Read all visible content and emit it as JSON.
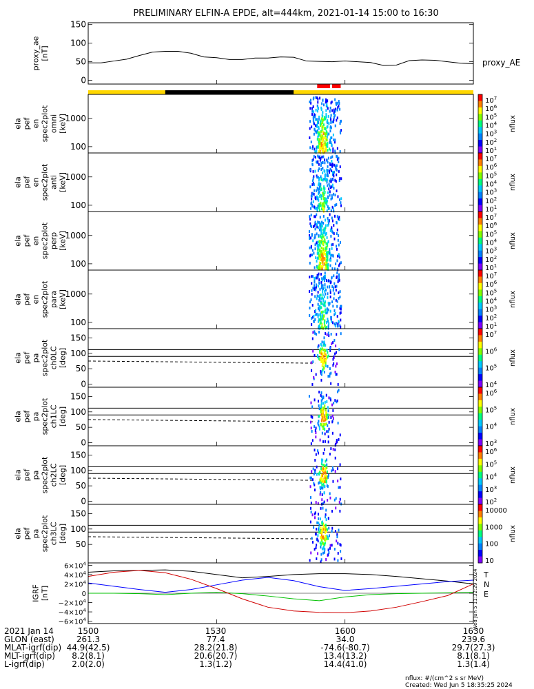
{
  "title": "PRELIMINARY ELFIN-A EPDE, alt=444km, 2021-01-14 15:00 to 16:30",
  "colors": {
    "frame": "#000000",
    "sunlit_bar": "#ffd700",
    "shadow_bar": "#000000",
    "science_bar": "#ff0000",
    "igrf_black": "#000000",
    "igrf_blue": "#0000ff",
    "igrf_green": "#00c000",
    "igrf_red": "#d00000"
  },
  "chart_data": [
    {
      "type": "line",
      "panel": "proxy_ae",
      "ylabel": "proxy_ae [nT]",
      "legend": "proxy_AE",
      "ylim": [
        -10,
        155
      ],
      "yticks": [
        "150",
        "100",
        "50",
        "0"
      ],
      "ytick_values": [
        150,
        100,
        50,
        0
      ],
      "x_minutes_since_1500": [
        0,
        3,
        6,
        9,
        12,
        15,
        18,
        21,
        24,
        27,
        30,
        33,
        36,
        39,
        42,
        45,
        48,
        51,
        54,
        57,
        60,
        63,
        66,
        69,
        72,
        75,
        78,
        81,
        84,
        87,
        90
      ],
      "values": [
        47,
        47,
        52,
        57,
        67,
        76,
        78,
        78,
        73,
        63,
        61,
        56,
        56,
        60,
        60,
        63,
        62,
        52,
        51,
        50,
        52,
        50,
        48,
        40,
        41,
        53,
        55,
        54,
        50,
        46,
        45
      ]
    },
    {
      "type": "heatmap",
      "panel": "omni",
      "ylabel": "ela pef en spec2plot omni [keV]",
      "yscale": "log",
      "yticks": [
        "1000",
        "100"
      ],
      "ytick_values": [
        1000,
        100
      ],
      "ylim": [
        60,
        7000
      ],
      "colorbar_label": "nflux",
      "colorbar_ticks": [
        "10^7",
        "10^6",
        "10^5",
        "10^4",
        "10^3",
        "10^2",
        "10^1"
      ]
    },
    {
      "type": "heatmap",
      "panel": "anti",
      "ylabel": "ela pef en spec2plot anti [keV]",
      "yscale": "log",
      "yticks": [
        "1000",
        "100"
      ],
      "ytick_values": [
        1000,
        100
      ],
      "ylim": [
        60,
        7000
      ],
      "colorbar_label": "nflux",
      "colorbar_ticks": [
        "10^7",
        "10^6",
        "10^5",
        "10^4",
        "10^3",
        "10^2",
        "10^1"
      ]
    },
    {
      "type": "heatmap",
      "panel": "perp",
      "ylabel": "ela pef en spec2plot perp [keV]",
      "yscale": "log",
      "yticks": [
        "1000",
        "100"
      ],
      "ytick_values": [
        1000,
        100
      ],
      "ylim": [
        60,
        7000
      ],
      "colorbar_label": "nflux",
      "colorbar_ticks": [
        "10^7",
        "10^6",
        "10^5",
        "10^4",
        "10^3",
        "10^2",
        "10^1"
      ]
    },
    {
      "type": "heatmap",
      "panel": "para",
      "ylabel": "ela pef en spec2plot para [keV]",
      "yscale": "log",
      "yticks": [
        "1000",
        "100"
      ],
      "ytick_values": [
        1000,
        100
      ],
      "ylim": [
        60,
        7000
      ],
      "colorbar_label": "nflux",
      "colorbar_ticks": [
        "10^7",
        "10^6",
        "10^5",
        "10^4",
        "10^3",
        "10^2",
        "10^1"
      ]
    },
    {
      "type": "heatmap",
      "panel": "ch0LC",
      "ylabel": "ela pef pa spec2plot ch0LC [deg]",
      "yticks": [
        "150",
        "100",
        "50",
        "0"
      ],
      "ytick_values": [
        150,
        100,
        50,
        0
      ],
      "ylim": [
        -10,
        180
      ],
      "colorbar_label": "nflux",
      "colorbar_ticks": [
        "10^7",
        "10^6",
        "10^5",
        "10^4"
      ]
    },
    {
      "type": "heatmap",
      "panel": "ch1LC",
      "ylabel": "ela pef pa spec2plot ch1LC [deg]",
      "yticks": [
        "150",
        "100",
        "50",
        "0"
      ],
      "ytick_values": [
        150,
        100,
        50,
        0
      ],
      "ylim": [
        -10,
        180
      ],
      "colorbar_label": "nflux",
      "colorbar_ticks": [
        "10^6",
        "10^5",
        "10^4",
        "10^3"
      ]
    },
    {
      "type": "heatmap",
      "panel": "ch2LC",
      "ylabel": "ela pef pa spec2plot ch2LC [deg]",
      "yticks": [
        "150",
        "100",
        "50",
        "0"
      ],
      "ytick_values": [
        150,
        100,
        50,
        0
      ],
      "ylim": [
        -10,
        180
      ],
      "colorbar_label": "nflux",
      "colorbar_ticks": [
        "10^6",
        "10^5",
        "10^4",
        "10^3",
        "10^2"
      ]
    },
    {
      "type": "heatmap",
      "panel": "ch3LC",
      "ylabel": "ela pef pa spec2plot ch3LC [deg]",
      "yticks": [
        "150",
        "100",
        "50"
      ],
      "ytick_values": [
        150,
        100,
        50
      ],
      "ylim": [
        -10,
        180
      ],
      "colorbar_label": "nflux",
      "colorbar_ticks": [
        "10000",
        "1000",
        "100",
        "10"
      ]
    },
    {
      "type": "line",
      "panel": "IGRF",
      "ylabel": "IGRF [nT]",
      "ylim": [
        -65000,
        65000
      ],
      "yticks": [
        "6×10^4",
        "4×10^4",
        "2×10^4",
        "0",
        "−2×10^4",
        "−4×10^4",
        "−6×10^4"
      ],
      "ytick_values": [
        60000,
        40000,
        20000,
        0,
        -20000,
        -40000,
        -60000
      ],
      "legend": [
        "T",
        "N",
        "E"
      ],
      "side_note": "Wed Jun 5 11:32:29 2024",
      "x_minutes_since_1500": [
        0,
        6,
        12,
        18,
        24,
        30,
        36,
        42,
        48,
        54,
        60,
        66,
        72,
        78,
        84,
        90
      ],
      "series": [
        {
          "name": "T",
          "values": [
            45000,
            48000,
            49000,
            50000,
            47000,
            40000,
            33000,
            36000,
            40000,
            42000,
            42000,
            40000,
            36000,
            31000,
            26000,
            20000
          ]
        },
        {
          "name": "N",
          "values": [
            22000,
            15000,
            8000,
            2000,
            8000,
            18000,
            28000,
            34000,
            27000,
            14000,
            6000,
            10000,
            15000,
            20000,
            25000,
            28000
          ]
        },
        {
          "name": "E",
          "values": [
            0,
            0,
            -1000,
            -3000,
            0,
            2000,
            -1000,
            -6000,
            -12000,
            -16000,
            -8000,
            -3000,
            -1000,
            0,
            1000,
            2000
          ]
        },
        {
          "name": "red",
          "values": [
            36000,
            45000,
            49000,
            44000,
            30000,
            10000,
            -12000,
            -30000,
            -38000,
            -41000,
            -42000,
            -38000,
            -30000,
            -18000,
            -5000,
            20000
          ]
        }
      ]
    }
  ],
  "gap_bar": {
    "x_start": 18,
    "x_end": 48
  },
  "science_bars": [
    [
      53.5,
      56.5
    ],
    [
      57,
      59
    ]
  ],
  "dashed_line_x_end": 53,
  "xaxis": {
    "ticks": [
      "1500",
      "1530",
      "1600",
      "1630"
    ],
    "tick_values": [
      0,
      30,
      60,
      90
    ],
    "rows": [
      {
        "label": "2021 Jan 14",
        "values": [
          "1500",
          "1530",
          "1600",
          "1630"
        ]
      },
      {
        "label": "GLON (east)",
        "values": [
          "261.3",
          "77.4",
          "34.0",
          "239.6"
        ]
      },
      {
        "label": "MLAT-igrf(dip)",
        "values": [
          "44.9(42.5)",
          "28.2(21.8)",
          "-74.6(-80.7)",
          "29.7(27.3)"
        ]
      },
      {
        "label": "MLT-igrf(dip)",
        "values": [
          "8.2(8.1)",
          "20.6(20.7)",
          "13.4(13.2)",
          "8.1(8.1)"
        ]
      },
      {
        "label": "L-igrf(dip)",
        "values": [
          "2.0(2.0)",
          "1.3(1.2)",
          "14.4(41.0)",
          "1.3(1.4)"
        ]
      }
    ]
  },
  "footer": {
    "units": "nflux: #/(cm^2 s sr MeV)",
    "created": "Created: Wed Jun  5 18:35:25 2024"
  }
}
